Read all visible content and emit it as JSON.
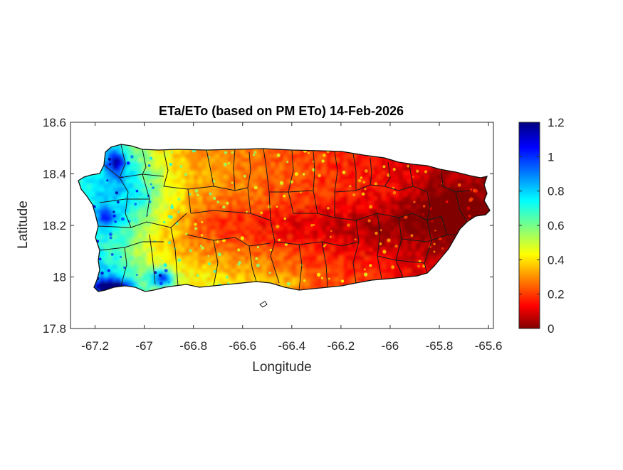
{
  "chart_data": {
    "type": "heatmap",
    "title": "ETa/ETo (based on PM ETo) 14-Feb-2026",
    "xlabel": "Longitude",
    "ylabel": "Latitude",
    "xlim": [
      -67.3,
      -65.58
    ],
    "ylim": [
      17.8,
      18.6
    ],
    "x_ticks": [
      "-67.2",
      "-67",
      "-66.8",
      "-66.6",
      "-66.4",
      "-66.2",
      "-66",
      "-65.8",
      "-65.6"
    ],
    "x_tick_values": [
      -67.2,
      -67.0,
      -66.8,
      -66.6,
      -66.4,
      -66.2,
      -66.0,
      -65.8,
      -65.6
    ],
    "y_ticks": [
      "18.6",
      "18.4",
      "18.2",
      "18",
      "17.8"
    ],
    "y_tick_values": [
      18.6,
      18.4,
      18.2,
      18.0,
      17.8
    ],
    "colorbar": {
      "colormap": "jet",
      "range": [
        0,
        1.2
      ],
      "ticks": [
        "1.2",
        "1",
        "0.8",
        "0.6",
        "0.4",
        "0.2",
        "0"
      ],
      "tick_values": [
        1.2,
        1.0,
        0.8,
        0.6,
        0.4,
        0.2,
        0.0
      ]
    },
    "grid": false
  }
}
